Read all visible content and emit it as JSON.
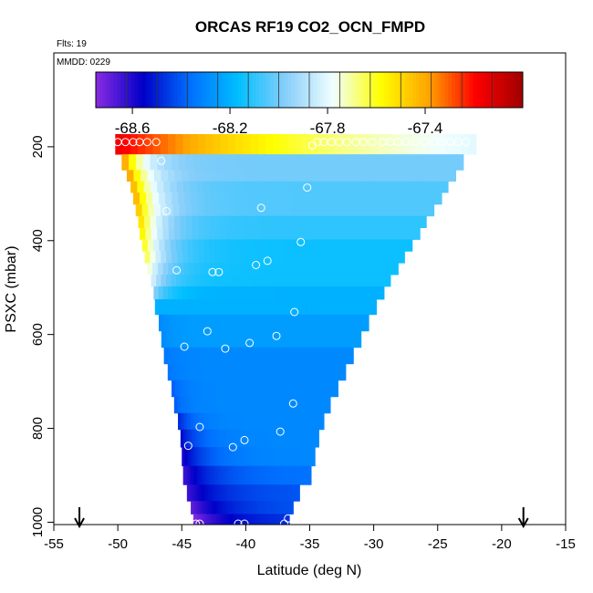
{
  "chart_data": {
    "type": "heatmap",
    "title": "ORCAS RF19 CO2_OCN_FMPD",
    "note_flts": "Flts: 19",
    "note_mmdd": "MMDD: 0229",
    "xlabel": "Latitude (deg N)",
    "ylabel": "PSXC (mbar)",
    "xlim": [
      -55,
      -15
    ],
    "ylim": [
      1005,
      0
    ],
    "x_ticks": [
      -55,
      -50,
      -45,
      -40,
      -35,
      -30,
      -25,
      -20,
      -15
    ],
    "x_tick_labels": [
      "-55",
      "-50",
      "-45",
      "-40",
      "-35",
      "-30",
      "-25",
      "-20",
      "-15"
    ],
    "y_ticks": [
      200,
      400,
      600,
      800,
      1000
    ],
    "y_tick_labels": [
      "200",
      "400",
      "600",
      "800",
      "1000"
    ],
    "colorbar": {
      "min": -68.75,
      "max": -67.0,
      "ticks": [
        -68.6,
        -68.2,
        -67.8,
        -67.4
      ],
      "tick_labels": [
        "-68.6",
        "-68.2",
        "-67.8",
        "-67.4"
      ],
      "colors": [
        "#8a2be2",
        "#0000c8",
        "#0070ff",
        "#00bfff",
        "#87cefa",
        "#f0ffff",
        "#ffff00",
        "#ffa500",
        "#ff0000",
        "#a00000"
      ]
    },
    "arrows_latitude": [
      -53,
      -18.3
    ],
    "field_rows": [
      {
        "p": 195,
        "lat_min": -50.2,
        "lat_max": -22.0,
        "left": -67.15,
        "right": -67.92,
        "edge_width": 15
      },
      {
        "p": 237,
        "lat_min": -49.7,
        "lat_max": -23.0,
        "left": -67.3,
        "right": -68.0,
        "edge_width": 1.6
      },
      {
        "p": 262,
        "lat_min": -49.3,
        "lat_max": -23.6,
        "left": -67.3,
        "right": -68.0,
        "edge_width": 1.6
      },
      {
        "p": 285,
        "lat_min": -49.0,
        "lat_max": -24.2,
        "left": -67.35,
        "right": -68.05,
        "edge_width": 1.8
      },
      {
        "p": 310,
        "lat_min": -48.8,
        "lat_max": -24.7,
        "left": -67.35,
        "right": -68.05,
        "edge_width": 1.8
      },
      {
        "p": 335,
        "lat_min": -48.6,
        "lat_max": -25.3,
        "left": -67.4,
        "right": -68.05,
        "edge_width": 1.8
      },
      {
        "p": 360,
        "lat_min": -48.4,
        "lat_max": -25.9,
        "left": -67.45,
        "right": -68.1,
        "edge_width": 1.8
      },
      {
        "p": 385,
        "lat_min": -48.3,
        "lat_max": -26.4,
        "left": -67.5,
        "right": -68.1,
        "edge_width": 1.8
      },
      {
        "p": 410,
        "lat_min": -48.1,
        "lat_max": -27.0,
        "left": -67.55,
        "right": -68.15,
        "edge_width": 1.8
      },
      {
        "p": 435,
        "lat_min": -47.9,
        "lat_max": -27.6,
        "left": -67.6,
        "right": -68.15,
        "edge_width": 1.8
      },
      {
        "p": 460,
        "lat_min": -47.7,
        "lat_max": -28.1,
        "left": -67.7,
        "right": -68.15,
        "edge_width": 1.6
      },
      {
        "p": 485,
        "lat_min": -47.4,
        "lat_max": -28.7,
        "left": -67.8,
        "right": -68.15,
        "edge_width": 1.4
      },
      {
        "p": 510,
        "lat_min": -47.2,
        "lat_max": -29.2,
        "left": -67.95,
        "right": -68.2,
        "edge_width": 1.2
      },
      {
        "p": 540,
        "lat_min": -47.1,
        "lat_max": -29.8,
        "left": -68.2,
        "right": -68.2,
        "edge_width": 1.0
      },
      {
        "p": 575,
        "lat_min": -46.8,
        "lat_max": -30.4,
        "left": -68.3,
        "right": -68.25,
        "edge_width": 1.0
      },
      {
        "p": 610,
        "lat_min": -46.6,
        "lat_max": -31.0,
        "left": -68.3,
        "right": -68.25,
        "edge_width": 1.0
      },
      {
        "p": 645,
        "lat_min": -46.4,
        "lat_max": -31.6,
        "left": -68.35,
        "right": -68.3,
        "edge_width": 1.0
      },
      {
        "p": 680,
        "lat_min": -46.1,
        "lat_max": -32.2,
        "left": -68.35,
        "right": -68.3,
        "edge_width": 1.0
      },
      {
        "p": 715,
        "lat_min": -45.8,
        "lat_max": -32.8,
        "left": -68.4,
        "right": -68.3,
        "edge_width": 1.0
      },
      {
        "p": 750,
        "lat_min": -45.6,
        "lat_max": -33.4,
        "left": -68.4,
        "right": -68.3,
        "edge_width": 1.0
      },
      {
        "p": 785,
        "lat_min": -45.3,
        "lat_max": -33.9,
        "left": -68.5,
        "right": -68.3,
        "edge_width": 1.2
      },
      {
        "p": 820,
        "lat_min": -45.1,
        "lat_max": -34.3,
        "left": -68.55,
        "right": -68.3,
        "edge_width": 1.6
      },
      {
        "p": 860,
        "lat_min": -45.0,
        "lat_max": -34.6,
        "left": -68.6,
        "right": -68.3,
        "edge_width": 2.0
      },
      {
        "p": 900,
        "lat_min": -44.9,
        "lat_max": -34.9,
        "left": -68.65,
        "right": -68.35,
        "edge_width": 2.4
      },
      {
        "p": 940,
        "lat_min": -44.6,
        "lat_max": -35.8,
        "left": -68.65,
        "right": -68.4,
        "edge_width": 2.6
      },
      {
        "p": 970,
        "lat_min": -44.3,
        "lat_max": -36.3,
        "left": -68.7,
        "right": -68.4,
        "edge_width": 2.8
      },
      {
        "p": 995,
        "lat_min": -44.1,
        "lat_max": -36.6,
        "left": -68.75,
        "right": -68.45,
        "edge_width": 2.8
      }
    ],
    "flight_points": [
      {
        "lat": -50.0,
        "p": 190
      },
      {
        "lat": -49.4,
        "p": 190
      },
      {
        "lat": -48.8,
        "p": 190
      },
      {
        "lat": -48.3,
        "p": 190
      },
      {
        "lat": -47.7,
        "p": 190
      },
      {
        "lat": -47.0,
        "p": 190
      },
      {
        "lat": -34.8,
        "p": 197
      },
      {
        "lat": -34.4,
        "p": 190
      },
      {
        "lat": -33.9,
        "p": 190
      },
      {
        "lat": -33.3,
        "p": 190
      },
      {
        "lat": -32.7,
        "p": 190
      },
      {
        "lat": -32.1,
        "p": 190
      },
      {
        "lat": -31.4,
        "p": 190
      },
      {
        "lat": -30.8,
        "p": 190
      },
      {
        "lat": -30.1,
        "p": 190
      },
      {
        "lat": -29.3,
        "p": 190
      },
      {
        "lat": -28.7,
        "p": 190
      },
      {
        "lat": -28.1,
        "p": 190
      },
      {
        "lat": -27.5,
        "p": 190
      },
      {
        "lat": -26.7,
        "p": 190
      },
      {
        "lat": -26.0,
        "p": 190
      },
      {
        "lat": -25.3,
        "p": 190
      },
      {
        "lat": -24.7,
        "p": 190
      },
      {
        "lat": -24.0,
        "p": 190
      },
      {
        "lat": -23.4,
        "p": 190
      },
      {
        "lat": -22.8,
        "p": 190
      },
      {
        "lat": -46.6,
        "p": 230
      },
      {
        "lat": -35.2,
        "p": 287
      },
      {
        "lat": -46.2,
        "p": 337
      },
      {
        "lat": -38.8,
        "p": 330
      },
      {
        "lat": -35.7,
        "p": 403
      },
      {
        "lat": -38.3,
        "p": 443
      },
      {
        "lat": -39.2,
        "p": 452
      },
      {
        "lat": -45.4,
        "p": 463
      },
      {
        "lat": -42.6,
        "p": 467
      },
      {
        "lat": -42.1,
        "p": 467
      },
      {
        "lat": -36.2,
        "p": 552
      },
      {
        "lat": -43.0,
        "p": 593
      },
      {
        "lat": -37.6,
        "p": 603
      },
      {
        "lat": -39.7,
        "p": 618
      },
      {
        "lat": -44.8,
        "p": 626
      },
      {
        "lat": -41.6,
        "p": 630
      },
      {
        "lat": -36.3,
        "p": 747
      },
      {
        "lat": -43.6,
        "p": 797
      },
      {
        "lat": -37.3,
        "p": 807
      },
      {
        "lat": -40.1,
        "p": 825
      },
      {
        "lat": -44.5,
        "p": 837
      },
      {
        "lat": -41.0,
        "p": 840
      },
      {
        "lat": -43.9,
        "p": 1003
      },
      {
        "lat": -43.6,
        "p": 1003
      },
      {
        "lat": -40.6,
        "p": 1003
      },
      {
        "lat": -40.1,
        "p": 1003
      },
      {
        "lat": -37.0,
        "p": 1003
      },
      {
        "lat": -36.7,
        "p": 992
      }
    ]
  }
}
